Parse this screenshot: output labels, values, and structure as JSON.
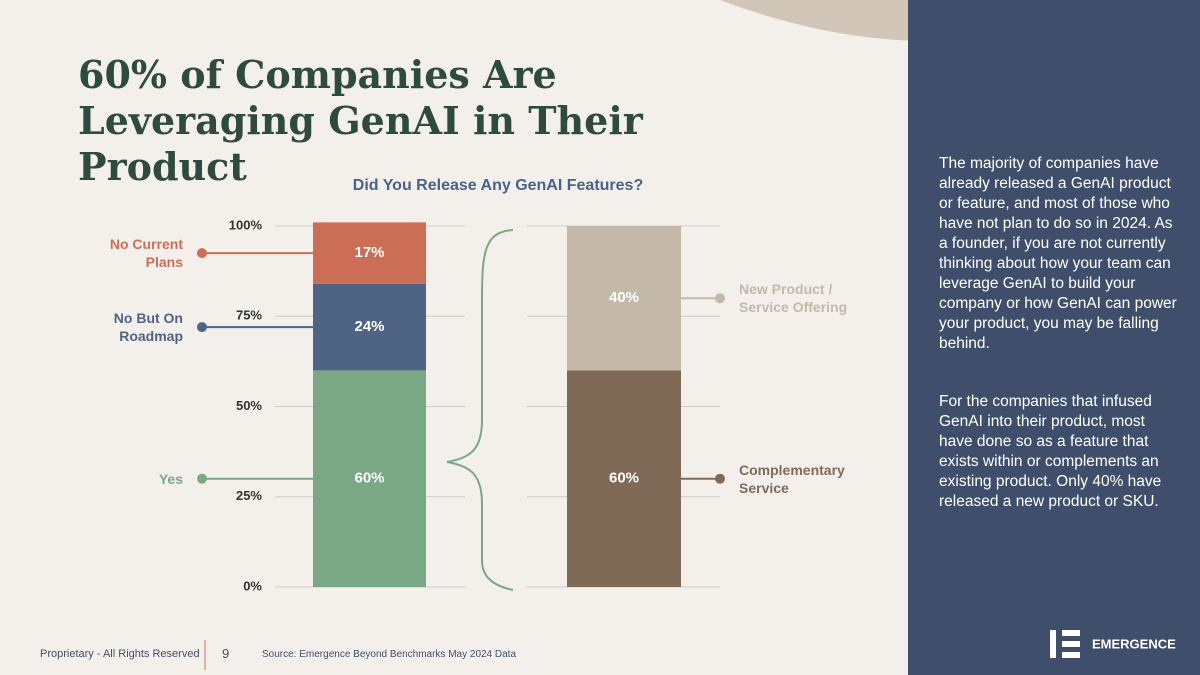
{
  "title": "60% of Companies Are Leveraging GenAI in Their Product",
  "chart_data": {
    "type": "stacked_bar",
    "title": "Did You Release Any GenAI Features?",
    "categories": [
      null,
      null
    ],
    "series": [
      {
        "name": "Yes",
        "color": "#7aa784",
        "values": [
          60,
          null
        ],
        "value_labels": [
          "60%",
          null
        ]
      },
      {
        "name": "No But On Roadmap",
        "color": "#4f6385",
        "values": [
          24,
          null
        ],
        "value_labels": [
          "24%",
          null
        ]
      },
      {
        "name": "No Current Plans",
        "color": "#cc6e55",
        "values": [
          17,
          null
        ],
        "value_labels": [
          "17%",
          null
        ]
      },
      {
        "name": "Complementary Service",
        "color": "#7f6a58",
        "values": [
          null,
          60
        ],
        "value_labels": [
          null,
          "60%"
        ]
      },
      {
        "name": "New Product / Service Offering",
        "color": "#c4b8a8",
        "values": [
          null,
          40
        ],
        "value_labels": [
          null,
          "40%"
        ]
      }
    ],
    "ylim": [
      0,
      100
    ],
    "yticks": [
      {
        "value": 0,
        "label": "0%"
      },
      {
        "value": 25,
        "label": "25%"
      },
      {
        "value": 50,
        "label": "50%"
      },
      {
        "value": 75,
        "label": "75%"
      },
      {
        "value": 100,
        "label": "100%"
      }
    ],
    "grid": true
  },
  "sidebar": {
    "paragraphs": [
      "The majority of companies have already released a GenAI product or feature, and most of those who have not plan to do so in 2024. As a founder, if you are not currently thinking about how your team can leverage GenAI to build your company or how GenAI can power your product, you may be falling behind.",
      "For the companies that infused GenAI into their product, most have done so as a feature that exists within or complements an existing product. Only 40% have released a new product or SKU."
    ],
    "logo": "EMERGENCE"
  },
  "footer": {
    "rights": "Proprietary - All Rights Reserved",
    "page": "9",
    "source": "Source: Emergence Beyond Benchmarks May 2024 Data"
  }
}
